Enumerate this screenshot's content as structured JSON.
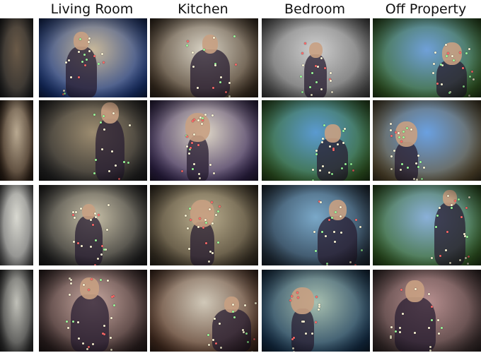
{
  "columns": [
    {
      "label": "Living Room"
    },
    {
      "label": "Kitchen"
    },
    {
      "label": "Bedroom"
    },
    {
      "label": "Off Property"
    }
  ],
  "tiles": [
    {
      "row": 0,
      "col": 0,
      "bg": [
        "#2b2b2b",
        "#6a5a48"
      ]
    },
    {
      "row": 0,
      "col": 1,
      "bg": [
        "#1c3c88",
        "#c8b89a"
      ]
    },
    {
      "row": 0,
      "col": 2,
      "bg": [
        "#4a3a2a",
        "#d8d2c4"
      ]
    },
    {
      "row": 0,
      "col": 3,
      "bg": [
        "#6a6a6a",
        "#cfcfcf"
      ]
    },
    {
      "row": 0,
      "col": 4,
      "bg": [
        "#3c6a2a",
        "#6fa0d8"
      ]
    },
    {
      "row": 1,
      "col": 0,
      "bg": [
        "#3a2a1e",
        "#b8a890"
      ]
    },
    {
      "row": 1,
      "col": 1,
      "bg": [
        "#2b2b2b",
        "#9c8c70"
      ]
    },
    {
      "row": 1,
      "col": 2,
      "bg": [
        "#3a2a5a",
        "#e0d8c8"
      ]
    },
    {
      "row": 1,
      "col": 3,
      "bg": [
        "#3a6a2a",
        "#5a9ad0"
      ]
    },
    {
      "row": 1,
      "col": 4,
      "bg": [
        "#6a5a3a",
        "#6aa0e0"
      ]
    },
    {
      "row": 2,
      "col": 0,
      "bg": [
        "#777777",
        "#d8d8d0"
      ]
    },
    {
      "row": 2,
      "col": 1,
      "bg": [
        "#2a2a2a",
        "#c8c0a8"
      ]
    },
    {
      "row": 2,
      "col": 2,
      "bg": [
        "#4a4030",
        "#bcb090"
      ]
    },
    {
      "row": 2,
      "col": 3,
      "bg": [
        "#2a3a4a",
        "#7aa8c8"
      ]
    },
    {
      "row": 2,
      "col": 4,
      "bg": [
        "#3a6a2a",
        "#8ab0d8"
      ]
    },
    {
      "row": 3,
      "col": 0,
      "bg": [
        "#3a3a3a",
        "#c0c0b8"
      ]
    },
    {
      "row": 3,
      "col": 1,
      "bg": [
        "#3a2a2a",
        "#c8a8a0"
      ]
    },
    {
      "row": 3,
      "col": 2,
      "bg": [
        "#5a3a2a",
        "#d0c8b8"
      ]
    },
    {
      "row": 3,
      "col": 3,
      "bg": [
        "#1a3a5a",
        "#a8c0b0"
      ]
    },
    {
      "row": 3,
      "col": 4,
      "bg": [
        "#4a3a3a",
        "#b89090"
      ]
    }
  ]
}
